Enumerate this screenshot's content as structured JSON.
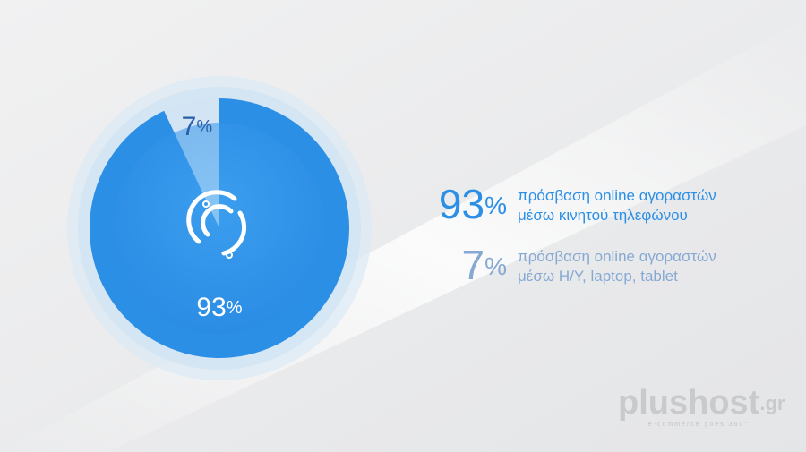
{
  "chart_data": {
    "type": "pie",
    "categories": [
      "πρόσβαση online αγοραστών\nμέσω κινητού τηλεφώνου",
      "πρόσβαση online αγοραστών\nμέσω Η/Υ, laptop, tablet"
    ],
    "values": [
      93,
      7
    ],
    "value_labels": [
      "93%",
      "7%"
    ],
    "colors": [
      "#2b8fe6",
      "#d3e5f5"
    ],
    "legend_colors": [
      "#2b8fe6",
      "#86a9d3"
    ]
  },
  "logo": {
    "name": "plushost",
    "suffix": ".gr",
    "tagline": "e-commerce goes 360°"
  }
}
